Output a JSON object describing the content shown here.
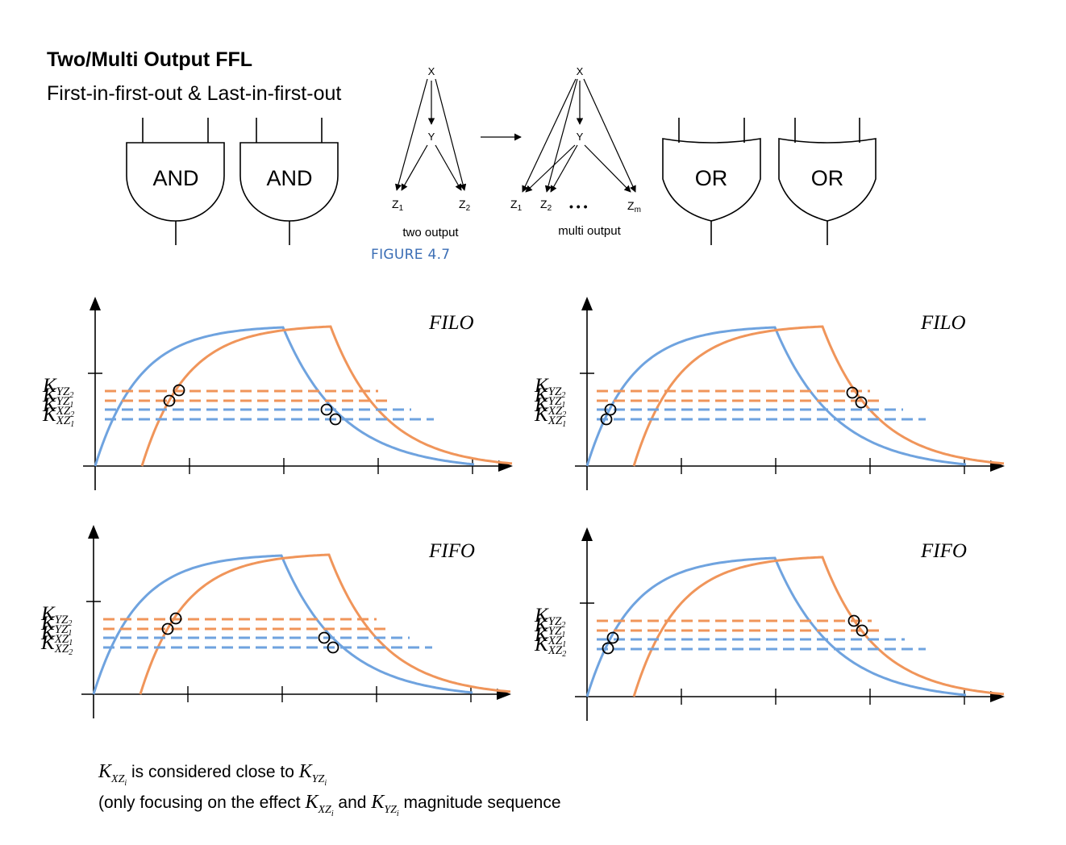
{
  "header": {
    "title": "Two/Multi Output FFL",
    "subtitle": "First-in-first-out & Last-in-first-out"
  },
  "gates": {
    "and_label": "AND",
    "or_label": "OR"
  },
  "figure": {
    "caption": "FIGURE 4.7",
    "two_output": {
      "caption": "two output",
      "x": "X",
      "y": "Y",
      "z1": "Z",
      "z1_sub": "1",
      "z2": "Z",
      "z2_sub": "2"
    },
    "multi_output": {
      "caption": "multi output",
      "x": "X",
      "y": "Y",
      "z1": "Z",
      "z1_sub": "1",
      "z2": "Z",
      "z2_sub": "2",
      "dots": "• • •",
      "zm": "Z",
      "zm_sub": "m"
    }
  },
  "panels": [
    {
      "label": "FILO",
      "thresholds": [
        {
          "k": "K",
          "sub": "YZ",
          "subsub": "2"
        },
        {
          "k": "K",
          "sub": "YZ",
          "subsub": "1"
        },
        {
          "k": "K",
          "sub": "XZ",
          "subsub": "2"
        },
        {
          "k": "K",
          "sub": "XZ",
          "subsub": "1"
        }
      ]
    },
    {
      "label": "FILO",
      "thresholds": [
        {
          "k": "K",
          "sub": "YZ",
          "subsub": "2"
        },
        {
          "k": "K",
          "sub": "YZ",
          "subsub": "1"
        },
        {
          "k": "K",
          "sub": "XZ",
          "subsub": "2"
        },
        {
          "k": "K",
          "sub": "XZ",
          "subsub": "1"
        }
      ]
    },
    {
      "label": "FIFO",
      "thresholds": [
        {
          "k": "K",
          "sub": "YZ",
          "subsub": "2"
        },
        {
          "k": "K",
          "sub": "YZ",
          "subsub": "1"
        },
        {
          "k": "K",
          "sub": "XZ",
          "subsub": "1"
        },
        {
          "k": "K",
          "sub": "XZ",
          "subsub": "2"
        }
      ]
    },
    {
      "label": "FIFO",
      "thresholds": [
        {
          "k": "K",
          "sub": "YZ",
          "subsub": "2"
        },
        {
          "k": "K",
          "sub": "YZ",
          "subsub": "1"
        },
        {
          "k": "K",
          "sub": "XZ",
          "subsub": "1"
        },
        {
          "k": "K",
          "sub": "XZ",
          "subsub": "2"
        }
      ]
    }
  ],
  "colors": {
    "x_curve": "#6fa3df",
    "y_curve": "#f0955a",
    "caption": "#3b6eb5"
  },
  "notes": {
    "line1_k1": "K",
    "line1_k1_sub": "XZ",
    "line1_k1_subsub": "i",
    "line1_text": " is considered close to ",
    "line1_k2": "K",
    "line1_k2_sub": "YZ",
    "line1_k2_subsub": "i",
    "line2_prefix": "(only focusing on the effect ",
    "line2_k1": "K",
    "line2_k1_sub": "XZ",
    "line2_k1_subsub": "i",
    "line2_mid": " and ",
    "line2_k2": "K",
    "line2_k2_sub": "YZ",
    "line2_k2_subsub": "i",
    "line2_suffix": " magnitude sequence"
  }
}
